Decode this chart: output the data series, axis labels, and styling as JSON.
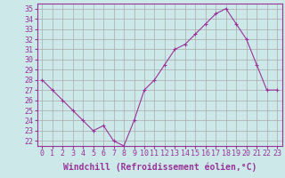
{
  "hours": [
    0,
    1,
    2,
    3,
    4,
    5,
    6,
    7,
    8,
    9,
    10,
    11,
    12,
    13,
    14,
    15,
    16,
    17,
    18,
    19,
    20,
    21,
    22,
    23
  ],
  "values": [
    28,
    27,
    26,
    25,
    24,
    23,
    23.5,
    22,
    21.5,
    24,
    27,
    28,
    29.5,
    31,
    31.5,
    32.5,
    33.5,
    34.5,
    35,
    33.5,
    32,
    29.5,
    27,
    27
  ],
  "line_color": "#993399",
  "marker": "+",
  "bg_color": "#cce8e8",
  "grid_color": "#aaaaaa",
  "xlabel": "Windchill (Refroidissement éolien,°C)",
  "xlabel_color": "#993399",
  "ylabel_ticks": [
    22,
    23,
    24,
    25,
    26,
    27,
    28,
    29,
    30,
    31,
    32,
    33,
    34,
    35
  ],
  "xlim": [
    -0.5,
    23.5
  ],
  "ylim": [
    21.5,
    35.5
  ],
  "tick_fontsize": 6,
  "label_fontsize": 7
}
